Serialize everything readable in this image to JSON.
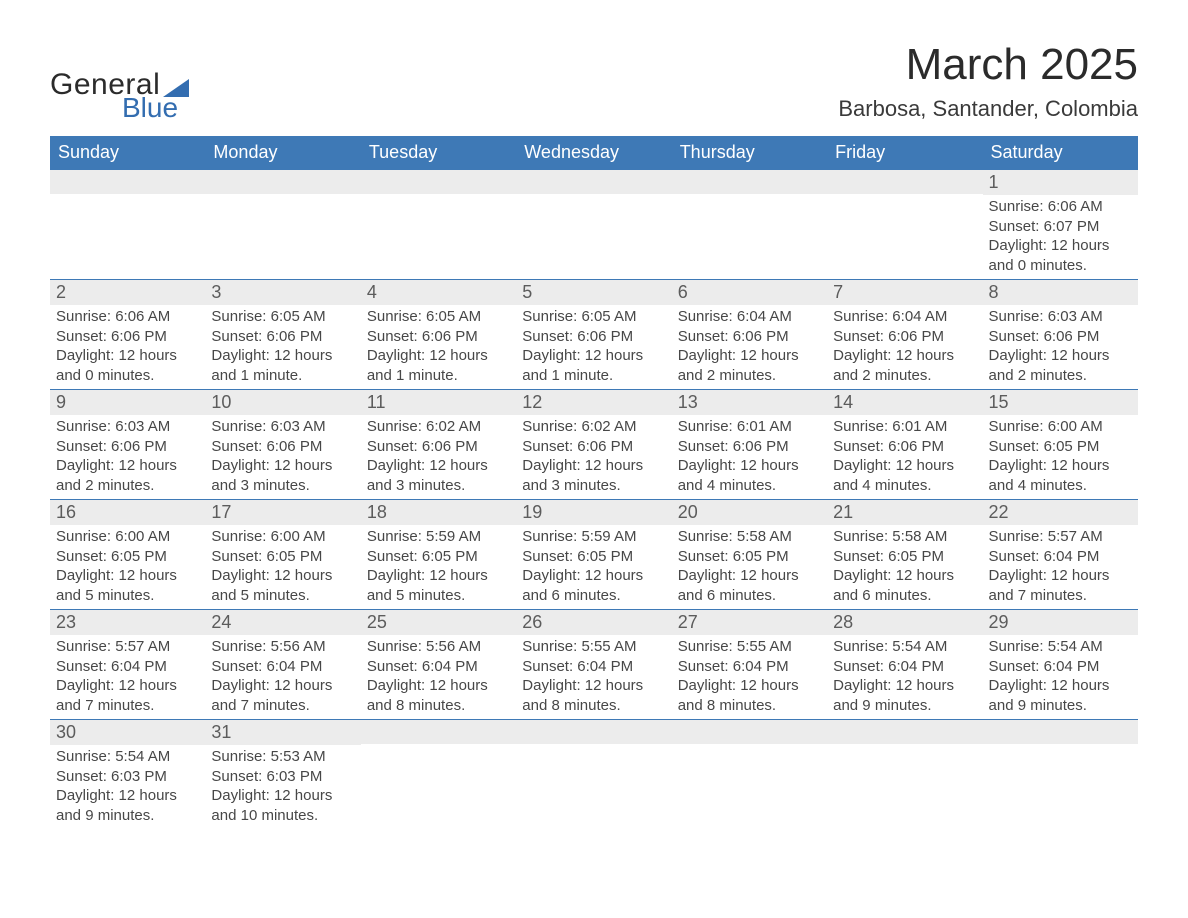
{
  "logo": {
    "word1": "General",
    "word2": "Blue"
  },
  "title": "March 2025",
  "location": "Barbosa, Santander, Colombia",
  "colors": {
    "header_bg": "#3e79b6",
    "header_text": "#ffffff",
    "row_divider": "#3e79b6",
    "daynum_bg": "#ececec",
    "text": "#474747",
    "logo_accent": "#336db0"
  },
  "day_headers": [
    "Sunday",
    "Monday",
    "Tuesday",
    "Wednesday",
    "Thursday",
    "Friday",
    "Saturday"
  ],
  "weeks": [
    [
      {
        "blank": true
      },
      {
        "blank": true
      },
      {
        "blank": true
      },
      {
        "blank": true
      },
      {
        "blank": true
      },
      {
        "blank": true
      },
      {
        "num": "1",
        "sunrise": "Sunrise: 6:06 AM",
        "sunset": "Sunset: 6:07 PM",
        "daylight1": "Daylight: 12 hours",
        "daylight2": "and 0 minutes."
      }
    ],
    [
      {
        "num": "2",
        "sunrise": "Sunrise: 6:06 AM",
        "sunset": "Sunset: 6:06 PM",
        "daylight1": "Daylight: 12 hours",
        "daylight2": "and 0 minutes."
      },
      {
        "num": "3",
        "sunrise": "Sunrise: 6:05 AM",
        "sunset": "Sunset: 6:06 PM",
        "daylight1": "Daylight: 12 hours",
        "daylight2": "and 1 minute."
      },
      {
        "num": "4",
        "sunrise": "Sunrise: 6:05 AM",
        "sunset": "Sunset: 6:06 PM",
        "daylight1": "Daylight: 12 hours",
        "daylight2": "and 1 minute."
      },
      {
        "num": "5",
        "sunrise": "Sunrise: 6:05 AM",
        "sunset": "Sunset: 6:06 PM",
        "daylight1": "Daylight: 12 hours",
        "daylight2": "and 1 minute."
      },
      {
        "num": "6",
        "sunrise": "Sunrise: 6:04 AM",
        "sunset": "Sunset: 6:06 PM",
        "daylight1": "Daylight: 12 hours",
        "daylight2": "and 2 minutes."
      },
      {
        "num": "7",
        "sunrise": "Sunrise: 6:04 AM",
        "sunset": "Sunset: 6:06 PM",
        "daylight1": "Daylight: 12 hours",
        "daylight2": "and 2 minutes."
      },
      {
        "num": "8",
        "sunrise": "Sunrise: 6:03 AM",
        "sunset": "Sunset: 6:06 PM",
        "daylight1": "Daylight: 12 hours",
        "daylight2": "and 2 minutes."
      }
    ],
    [
      {
        "num": "9",
        "sunrise": "Sunrise: 6:03 AM",
        "sunset": "Sunset: 6:06 PM",
        "daylight1": "Daylight: 12 hours",
        "daylight2": "and 2 minutes."
      },
      {
        "num": "10",
        "sunrise": "Sunrise: 6:03 AM",
        "sunset": "Sunset: 6:06 PM",
        "daylight1": "Daylight: 12 hours",
        "daylight2": "and 3 minutes."
      },
      {
        "num": "11",
        "sunrise": "Sunrise: 6:02 AM",
        "sunset": "Sunset: 6:06 PM",
        "daylight1": "Daylight: 12 hours",
        "daylight2": "and 3 minutes."
      },
      {
        "num": "12",
        "sunrise": "Sunrise: 6:02 AM",
        "sunset": "Sunset: 6:06 PM",
        "daylight1": "Daylight: 12 hours",
        "daylight2": "and 3 minutes."
      },
      {
        "num": "13",
        "sunrise": "Sunrise: 6:01 AM",
        "sunset": "Sunset: 6:06 PM",
        "daylight1": "Daylight: 12 hours",
        "daylight2": "and 4 minutes."
      },
      {
        "num": "14",
        "sunrise": "Sunrise: 6:01 AM",
        "sunset": "Sunset: 6:06 PM",
        "daylight1": "Daylight: 12 hours",
        "daylight2": "and 4 minutes."
      },
      {
        "num": "15",
        "sunrise": "Sunrise: 6:00 AM",
        "sunset": "Sunset: 6:05 PM",
        "daylight1": "Daylight: 12 hours",
        "daylight2": "and 4 minutes."
      }
    ],
    [
      {
        "num": "16",
        "sunrise": "Sunrise: 6:00 AM",
        "sunset": "Sunset: 6:05 PM",
        "daylight1": "Daylight: 12 hours",
        "daylight2": "and 5 minutes."
      },
      {
        "num": "17",
        "sunrise": "Sunrise: 6:00 AM",
        "sunset": "Sunset: 6:05 PM",
        "daylight1": "Daylight: 12 hours",
        "daylight2": "and 5 minutes."
      },
      {
        "num": "18",
        "sunrise": "Sunrise: 5:59 AM",
        "sunset": "Sunset: 6:05 PM",
        "daylight1": "Daylight: 12 hours",
        "daylight2": "and 5 minutes."
      },
      {
        "num": "19",
        "sunrise": "Sunrise: 5:59 AM",
        "sunset": "Sunset: 6:05 PM",
        "daylight1": "Daylight: 12 hours",
        "daylight2": "and 6 minutes."
      },
      {
        "num": "20",
        "sunrise": "Sunrise: 5:58 AM",
        "sunset": "Sunset: 6:05 PM",
        "daylight1": "Daylight: 12 hours",
        "daylight2": "and 6 minutes."
      },
      {
        "num": "21",
        "sunrise": "Sunrise: 5:58 AM",
        "sunset": "Sunset: 6:05 PM",
        "daylight1": "Daylight: 12 hours",
        "daylight2": "and 6 minutes."
      },
      {
        "num": "22",
        "sunrise": "Sunrise: 5:57 AM",
        "sunset": "Sunset: 6:04 PM",
        "daylight1": "Daylight: 12 hours",
        "daylight2": "and 7 minutes."
      }
    ],
    [
      {
        "num": "23",
        "sunrise": "Sunrise: 5:57 AM",
        "sunset": "Sunset: 6:04 PM",
        "daylight1": "Daylight: 12 hours",
        "daylight2": "and 7 minutes."
      },
      {
        "num": "24",
        "sunrise": "Sunrise: 5:56 AM",
        "sunset": "Sunset: 6:04 PM",
        "daylight1": "Daylight: 12 hours",
        "daylight2": "and 7 minutes."
      },
      {
        "num": "25",
        "sunrise": "Sunrise: 5:56 AM",
        "sunset": "Sunset: 6:04 PM",
        "daylight1": "Daylight: 12 hours",
        "daylight2": "and 8 minutes."
      },
      {
        "num": "26",
        "sunrise": "Sunrise: 5:55 AM",
        "sunset": "Sunset: 6:04 PM",
        "daylight1": "Daylight: 12 hours",
        "daylight2": "and 8 minutes."
      },
      {
        "num": "27",
        "sunrise": "Sunrise: 5:55 AM",
        "sunset": "Sunset: 6:04 PM",
        "daylight1": "Daylight: 12 hours",
        "daylight2": "and 8 minutes."
      },
      {
        "num": "28",
        "sunrise": "Sunrise: 5:54 AM",
        "sunset": "Sunset: 6:04 PM",
        "daylight1": "Daylight: 12 hours",
        "daylight2": "and 9 minutes."
      },
      {
        "num": "29",
        "sunrise": "Sunrise: 5:54 AM",
        "sunset": "Sunset: 6:04 PM",
        "daylight1": "Daylight: 12 hours",
        "daylight2": "and 9 minutes."
      }
    ],
    [
      {
        "num": "30",
        "sunrise": "Sunrise: 5:54 AM",
        "sunset": "Sunset: 6:03 PM",
        "daylight1": "Daylight: 12 hours",
        "daylight2": "and 9 minutes."
      },
      {
        "num": "31",
        "sunrise": "Sunrise: 5:53 AM",
        "sunset": "Sunset: 6:03 PM",
        "daylight1": "Daylight: 12 hours",
        "daylight2": "and 10 minutes."
      },
      {
        "blank": true
      },
      {
        "blank": true
      },
      {
        "blank": true
      },
      {
        "blank": true
      },
      {
        "blank": true
      }
    ]
  ]
}
